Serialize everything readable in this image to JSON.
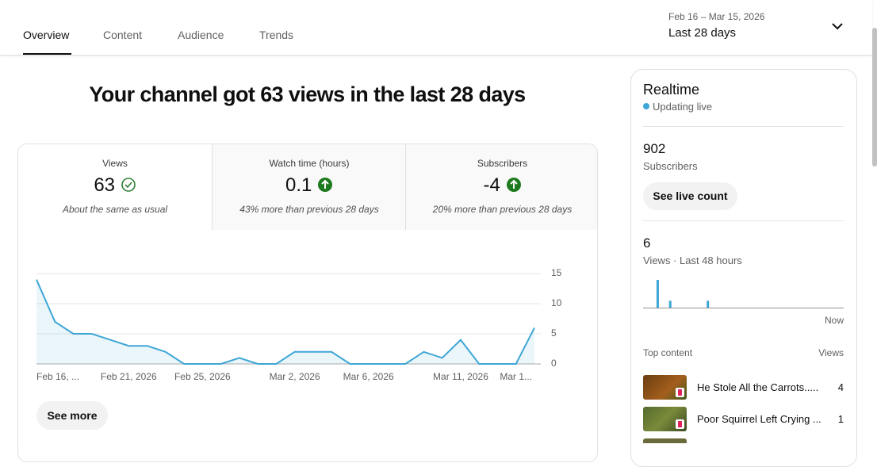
{
  "tabs": [
    "Overview",
    "Content",
    "Audience",
    "Trends"
  ],
  "date_range": {
    "dates": "Feb 16 – Mar 15, 2026",
    "period": "Last 28 days"
  },
  "headline": "Your channel got 63 views in the last 28 days",
  "metrics": [
    {
      "label": "Views",
      "value": 63,
      "note": "About the same as usual"
    },
    {
      "label": "Watch time (hours)",
      "value": 0.1,
      "note": "43% more than previous 28 days"
    },
    {
      "label": "Subscribers",
      "value": -4,
      "note": "20% more than previous 28 days"
    }
  ],
  "chart_data": [
    {
      "type": "line",
      "categories": [
        "Feb 16, ...",
        null,
        null,
        null,
        null,
        "Feb 21, 2026",
        null,
        null,
        null,
        "Feb 25, 2026",
        null,
        null,
        null,
        null,
        "Mar 2, 2026",
        null,
        null,
        null,
        "Mar 6, 2026",
        null,
        null,
        null,
        null,
        "Mar 11, 2026",
        null,
        null,
        "Mar 1...",
        null
      ],
      "values": [
        14,
        7,
        5,
        5,
        4,
        3,
        3,
        2,
        0,
        0,
        0,
        1,
        0,
        0,
        2,
        2,
        2,
        0,
        0,
        0,
        0,
        2,
        1,
        4,
        0,
        0,
        0,
        6
      ],
      "color": "#3ea6d6",
      "ylim": [
        0,
        15
      ],
      "yticks": [
        0,
        5,
        10,
        15
      ],
      "grid": true
    },
    {
      "type": "bar",
      "categories": [
        null,
        null,
        null,
        null,
        null,
        null,
        null,
        null,
        null,
        null,
        null,
        null,
        null,
        null,
        null,
        null,
        null,
        null,
        null,
        null,
        null,
        null,
        null,
        null,
        null,
        null,
        null,
        null,
        null,
        null,
        null,
        null,
        null,
        null,
        null,
        null,
        null,
        null,
        null,
        null,
        null,
        null,
        null,
        null,
        null,
        null,
        null,
        "Now"
      ],
      "values": [
        0,
        0,
        0,
        4,
        0,
        0,
        1,
        0,
        0,
        0,
        0,
        0,
        0,
        0,
        0,
        1,
        0,
        0,
        0,
        0,
        0,
        0,
        0,
        0,
        0,
        0,
        0,
        0,
        0,
        0,
        0,
        0,
        0,
        0,
        0,
        0,
        0,
        0,
        0,
        0,
        0,
        0,
        0,
        0,
        0,
        0,
        0,
        0
      ],
      "color": "#3ea6d6",
      "ylim": [
        0,
        4
      ]
    }
  ],
  "see_more": "See more",
  "realtime": {
    "title": "Realtime",
    "status": "Updating live",
    "subscribers": 902,
    "subscribers_label": "Subscribers",
    "live_count_button": "See live count",
    "views": 6,
    "views_label": "Views · Last 48 hours",
    "top_content": {
      "header": "Top content",
      "views_header": "Views",
      "items": [
        {
          "title": "He Stole All the Carrots.....",
          "views": 4
        },
        {
          "title": "Poor Squirrel Left Crying ...",
          "views": 1
        }
      ]
    }
  }
}
